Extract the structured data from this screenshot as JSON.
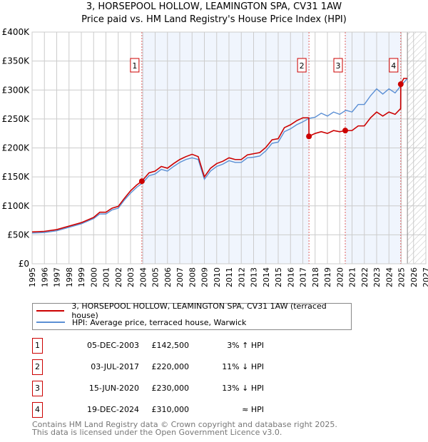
{
  "title": "3, HORSEPOOL HOLLOW, LEAMINGTON SPA, CV31 1AW",
  "subtitle": "Price paid vs. HM Land Registry's House Price Index (HPI)",
  "chart_data": {
    "type": "line",
    "title": "3, HORSEPOOL HOLLOW, LEAMINGTON SPA, CV31 1AW",
    "xlim": [
      1995,
      2027
    ],
    "ylim": [
      0,
      400000
    ],
    "yticks": [
      {
        "v": 0,
        "label": "£0"
      },
      {
        "v": 50000,
        "label": "£50K"
      },
      {
        "v": 100000,
        "label": "£100K"
      },
      {
        "v": 150000,
        "label": "£150K"
      },
      {
        "v": 200000,
        "label": "£200K"
      },
      {
        "v": 250000,
        "label": "£250K"
      },
      {
        "v": 300000,
        "label": "£300K"
      },
      {
        "v": 350000,
        "label": "£350K"
      },
      {
        "v": 400000,
        "label": "£400K"
      }
    ],
    "xticks": [
      "1995",
      "1996",
      "1997",
      "1998",
      "1999",
      "2000",
      "2001",
      "2002",
      "2003",
      "2004",
      "2005",
      "2006",
      "2007",
      "2008",
      "2009",
      "2010",
      "2011",
      "2012",
      "2013",
      "2014",
      "2015",
      "2016",
      "2017",
      "2018",
      "2019",
      "2020",
      "2021",
      "2022",
      "2023",
      "2024",
      "2025",
      "2026",
      "2027"
    ],
    "grid": true,
    "forecast_start": 2025.5,
    "series": [
      {
        "name": "HPI: Average price, terraced house, Warwick",
        "color": "#5b8fd4",
        "x": [
          1995,
          1996,
          1997,
          1998,
          1999,
          2000,
          2000.5,
          2001,
          2001.5,
          2002,
          2002.5,
          2003,
          2003.5,
          2004,
          2004.5,
          2005,
          2005.5,
          2006,
          2006.5,
          2007,
          2007.5,
          2008,
          2008.5,
          2009,
          2009.5,
          2010,
          2010.5,
          2011,
          2011.5,
          2012,
          2012.5,
          2013,
          2013.5,
          2014,
          2014.5,
          2015,
          2015.5,
          2016,
          2016.5,
          2017,
          2017.5,
          2018,
          2018.5,
          2019,
          2019.5,
          2020,
          2020.5,
          2021,
          2021.5,
          2022,
          2022.5,
          2023,
          2023.5,
          2024,
          2024.5,
          2025,
          2025.5
        ],
        "y": [
          53000,
          54000,
          57000,
          63000,
          69000,
          78000,
          86000,
          86000,
          93000,
          96000,
          110000,
          122000,
          132000,
          140000,
          152000,
          155000,
          163000,
          160000,
          168000,
          175000,
          180000,
          183000,
          180000,
          146000,
          160000,
          168000,
          172000,
          178000,
          175000,
          175000,
          183000,
          184000,
          186000,
          195000,
          208000,
          210000,
          228000,
          233000,
          240000,
          245000,
          251000,
          253000,
          260000,
          255000,
          262000,
          258000,
          265000,
          262000,
          275000,
          275000,
          290000,
          302000,
          293000,
          302000,
          295000,
          308000,
          320000
        ]
      },
      {
        "name": "3, HORSEPOOL HOLLOW, LEAMINGTON SPA, CV31 1AW (terraced house)",
        "color": "#cc0000",
        "x": [
          1995,
          1996,
          1997,
          1998,
          1999,
          2000,
          2000.5,
          2001,
          2001.5,
          2002,
          2002.5,
          2003,
          2003.5,
          2003.92,
          2004.5,
          2005,
          2005.5,
          2006,
          2006.5,
          2007,
          2007.5,
          2008,
          2008.5,
          2009,
          2009.5,
          2010,
          2010.5,
          2011,
          2011.5,
          2012,
          2012.5,
          2013,
          2013.5,
          2014,
          2014.5,
          2015,
          2015.5,
          2016,
          2016.5,
          2017,
          2017.49,
          2017.5,
          2018,
          2018.5,
          2019,
          2019.5,
          2020,
          2020.45,
          2021,
          2021.5,
          2022,
          2022.5,
          2023,
          2023.5,
          2024,
          2024.5,
          2024.95,
          2024.96,
          2025.2,
          2025.5
        ],
        "y": [
          55000,
          56000,
          59000,
          65000,
          71000,
          80000,
          89000,
          89000,
          96000,
          99000,
          113000,
          126000,
          136000,
          142500,
          157000,
          160000,
          168000,
          165000,
          173000,
          180000,
          185000,
          189000,
          185000,
          150000,
          165000,
          173000,
          177000,
          183000,
          180000,
          180000,
          188000,
          190000,
          192000,
          201000,
          214000,
          216000,
          235000,
          240000,
          247000,
          252000,
          252000,
          220000,
          225000,
          228000,
          225000,
          230000,
          228000,
          230000,
          230000,
          238000,
          238000,
          252000,
          262000,
          255000,
          262000,
          258000,
          268000,
          310000,
          320000,
          320000
        ]
      }
    ],
    "sales": [
      {
        "label": "1",
        "x": 2003.92,
        "y": 142500
      },
      {
        "label": "2",
        "x": 2017.5,
        "y": 220000
      },
      {
        "label": "3",
        "x": 2020.45,
        "y": 230000
      },
      {
        "label": "4",
        "x": 2024.96,
        "y": 310000
      }
    ]
  },
  "legend": {
    "property": "3, HORSEPOOL HOLLOW, LEAMINGTON SPA, CV31 1AW (terraced house)",
    "hpi": "HPI: Average price, terraced house, Warwick",
    "property_color": "#cc0000",
    "hpi_color": "#5b8fd4"
  },
  "transactions": [
    {
      "num": "1",
      "date": "05-DEC-2003",
      "price": "£142,500",
      "hpi": "3% ↑ HPI"
    },
    {
      "num": "2",
      "date": "03-JUL-2017",
      "price": "£220,000",
      "hpi": "11% ↓ HPI"
    },
    {
      "num": "3",
      "date": "15-JUN-2020",
      "price": "£230,000",
      "hpi": "13% ↓ HPI"
    },
    {
      "num": "4",
      "date": "19-DEC-2024",
      "price": "£310,000",
      "hpi": "≈ HPI"
    }
  ],
  "footer": [
    "Contains HM Land Registry data © Crown copyright and database right 2025.",
    "This data is licensed under the Open Government Licence v3.0."
  ]
}
